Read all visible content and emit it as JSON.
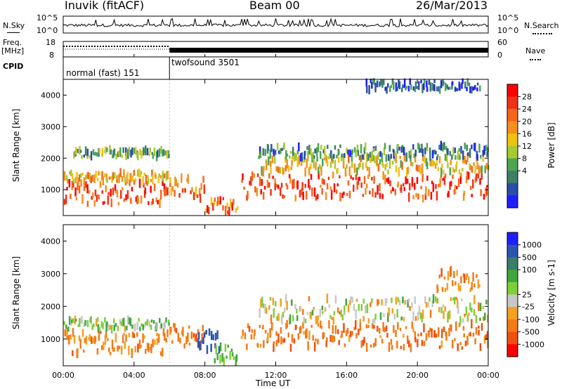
{
  "header": {
    "station": "Inuvik (fitACF)",
    "beam": "Beam 00",
    "date": "26/Mar/2013"
  },
  "strip_labels": {
    "nsky": "N.Sky",
    "nsky_ticks": [
      "10^5",
      "10^0"
    ],
    "freq_top": "Freq.",
    "freq_unit": "[MHz]",
    "freq_ticks": [
      "18",
      "8"
    ],
    "cpid": "CPID",
    "nsearch": "N.Search",
    "nsearch_ticks": [
      "10^5",
      "10^0"
    ],
    "nave": "Nave",
    "nave_ticks": [
      "60",
      "0"
    ]
  },
  "cpid_modes": [
    "normal (fast) 151",
    "twofsound 3501"
  ],
  "colors": {
    "power": [
      "#1e1eff",
      "#2a4fa8",
      "#3f7f6a",
      "#4ca553",
      "#a7c931",
      "#f0c313",
      "#f5901f",
      "#f5661b",
      "#ee3317",
      "#ff0000"
    ],
    "velocity": [
      "#1e1eff",
      "#2b55b0",
      "#3a7d6a",
      "#3ea63c",
      "#7ed03a",
      "#c8c8c8",
      "#f4a020",
      "#f47a14",
      "#f05010",
      "#ff0000"
    ]
  },
  "chart_data": [
    {
      "type": "heatmap",
      "title": "",
      "xlabel": "",
      "ylabel": "Slant Range [km]",
      "x_ticks": [
        "00:00",
        "04:00",
        "08:00",
        "12:00",
        "16:00",
        "20:00",
        "00:00"
      ],
      "y_ticks": [
        "1000",
        "2000",
        "3000",
        "4000"
      ],
      "ylim": [
        180,
        4500
      ],
      "colorbar_label": "Power [dB]",
      "colorbar_ticks": [
        "28",
        "24",
        "20",
        "16",
        "12",
        "8",
        "4"
      ],
      "bands": [
        {
          "t0": 0.0,
          "t1": 6.0,
          "r": 900,
          "w": 350,
          "v": 26
        },
        {
          "t0": 0.0,
          "t1": 6.0,
          "r": 1400,
          "w": 150,
          "v": 20
        },
        {
          "t0": 0.5,
          "t1": 6.0,
          "r": 2150,
          "w": 120,
          "v": 13
        },
        {
          "t0": 6.0,
          "t1": 8.0,
          "r": 1050,
          "w": 350,
          "v": 24
        },
        {
          "t0": 8.0,
          "t1": 9.8,
          "r": 500,
          "w": 250,
          "v": 24
        },
        {
          "t0": 10.0,
          "t1": 24.0,
          "r": 1100,
          "w": 380,
          "v": 26
        },
        {
          "t0": 11.0,
          "t1": 24.0,
          "r": 1800,
          "w": 250,
          "v": 18
        },
        {
          "t0": 11.0,
          "t1": 24.0,
          "r": 2200,
          "w": 200,
          "v": 10
        },
        {
          "t0": 17.0,
          "t1": 23.5,
          "r": 4300,
          "w": 150,
          "v": 8
        }
      ]
    },
    {
      "type": "heatmap",
      "title": "",
      "xlabel": "Time UT",
      "ylabel": "Slant Range [km]",
      "x_ticks": [
        "00:00",
        "04:00",
        "08:00",
        "12:00",
        "16:00",
        "20:00",
        "00:00"
      ],
      "y_ticks": [
        "1000",
        "2000",
        "3000",
        "4000"
      ],
      "ylim": [
        180,
        4500
      ],
      "colorbar_label": "Velocity [m s-1]",
      "colorbar_ticks": [
        "1000",
        "500",
        "100",
        "25",
        "-25",
        "-100",
        "-500",
        "-1000"
      ],
      "bands": [
        {
          "t0": 0.0,
          "t1": 6.0,
          "r": 900,
          "w": 350,
          "v": -150
        },
        {
          "t0": 0.0,
          "t1": 6.0,
          "r": 1450,
          "w": 150,
          "v": 80
        },
        {
          "t0": 6.0,
          "t1": 8.0,
          "r": 1100,
          "w": 350,
          "v": -200
        },
        {
          "t0": 7.5,
          "t1": 8.8,
          "r": 950,
          "w": 300,
          "v": 700
        },
        {
          "t0": 8.5,
          "t1": 9.8,
          "r": 550,
          "w": 250,
          "v": 150
        },
        {
          "t0": 10.0,
          "t1": 24.0,
          "r": 1100,
          "w": 380,
          "v": -200
        },
        {
          "t0": 11.0,
          "t1": 24.0,
          "r": 1900,
          "w": 350,
          "v": 0
        },
        {
          "t0": 21.0,
          "t1": 23.5,
          "r": 2800,
          "w": 300,
          "v": -150
        }
      ]
    }
  ]
}
